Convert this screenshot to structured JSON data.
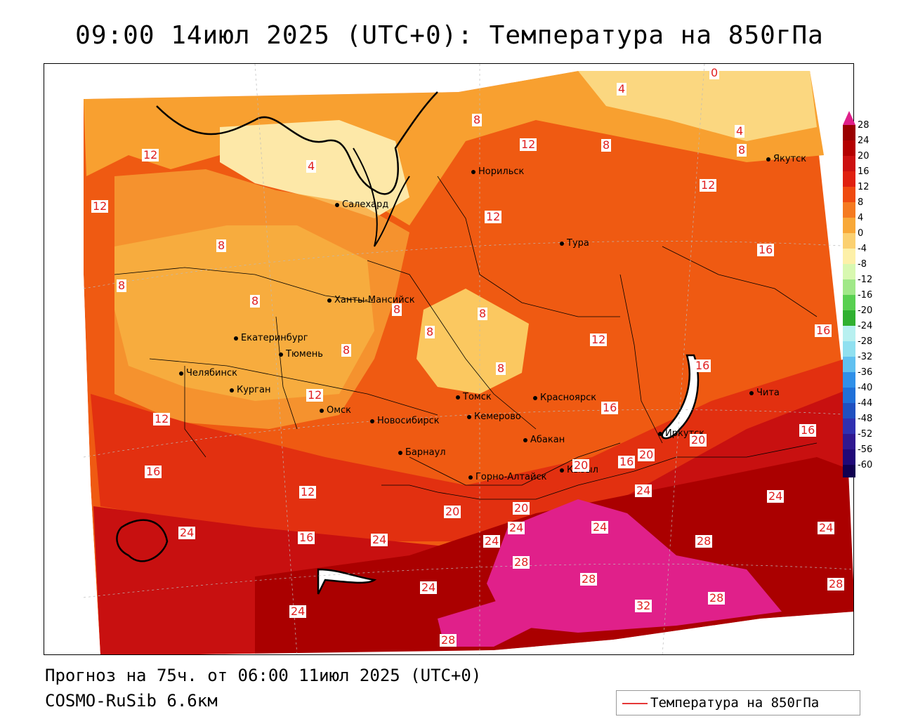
{
  "title": "09:00 14июл 2025 (UTC+0): Температура на 850гПа",
  "footer": {
    "forecast": "Прогноз на 75ч. от 06:00 11июл 2025 (UTC+0)",
    "model": "COSMO-RuSib 6.6км"
  },
  "legend": {
    "label": "Температура на 850гПа",
    "line_color": "#e53838"
  },
  "colorbar": {
    "labels": [
      "28",
      "24",
      "20",
      "16",
      "12",
      "8",
      "4",
      "0",
      "-4",
      "-8",
      "-12",
      "-16",
      "-20",
      "-24",
      "-28",
      "-32",
      "-36",
      "-40",
      "-44",
      "-48",
      "-52",
      "-56",
      "-60"
    ],
    "colors": [
      "#9a0000",
      "#b40000",
      "#cc1010",
      "#e02010",
      "#ef4a10",
      "#f57a20",
      "#f8a838",
      "#fbd070",
      "#fdf0a8",
      "#d8f8b0",
      "#a0e888",
      "#58d050",
      "#30b030",
      "#b8f0f0",
      "#90e0f0",
      "#60c0f0",
      "#3090e8",
      "#2070d8",
      "#2050c0",
      "#3030b0",
      "#301890",
      "#200878",
      "#100050"
    ],
    "top_color": "#e0208a"
  },
  "cities": [
    {
      "name": "Норильск"
    },
    {
      "name": "Салехард"
    },
    {
      "name": "Тура"
    },
    {
      "name": "Якутск"
    },
    {
      "name": "Ханты-Мансийск"
    },
    {
      "name": "Екатеринбург"
    },
    {
      "name": "Тюмень"
    },
    {
      "name": "Челябинск"
    },
    {
      "name": "Курган"
    },
    {
      "name": "Омск"
    },
    {
      "name": "Томск"
    },
    {
      "name": "Новосибирск"
    },
    {
      "name": "Кемерово"
    },
    {
      "name": "Красноярск"
    },
    {
      "name": "Барнаул"
    },
    {
      "name": "Абакан"
    },
    {
      "name": "Иркутск"
    },
    {
      "name": "Чита"
    },
    {
      "name": "Кызыл"
    },
    {
      "name": "Горно-Алтайск"
    }
  ],
  "isotherm_labels": [
    "0",
    "4",
    "4",
    "4",
    "8",
    "8",
    "8",
    "8",
    "8",
    "8",
    "8",
    "8",
    "8",
    "8",
    "8",
    "12",
    "12",
    "12",
    "12",
    "12",
    "12",
    "12",
    "12",
    "12",
    "16",
    "16",
    "16",
    "16",
    "16",
    "16",
    "16",
    "16",
    "20",
    "20",
    "20",
    "20",
    "20",
    "24",
    "24",
    "24",
    "24",
    "24",
    "24",
    "24",
    "24",
    "24",
    "24",
    "28",
    "28",
    "28",
    "28",
    "28",
    "28",
    "32"
  ]
}
